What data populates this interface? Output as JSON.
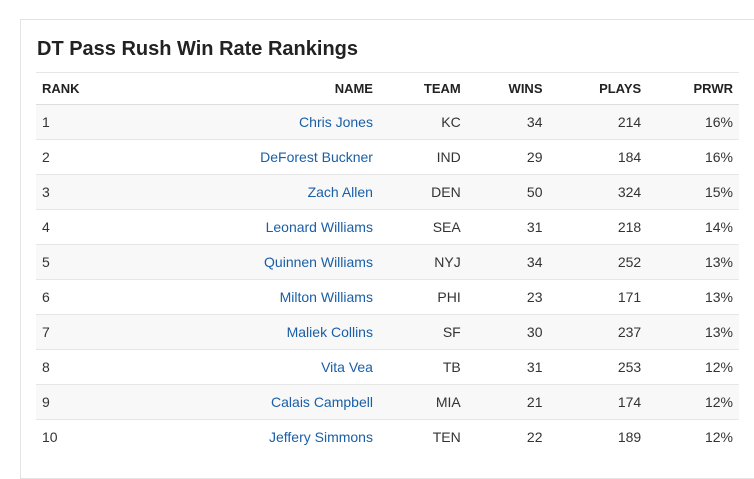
{
  "title": "DT Pass Rush Win Rate Rankings",
  "columns": {
    "rank": "RANK",
    "name": "NAME",
    "team": "TEAM",
    "wins": "WINS",
    "plays": "PLAYS",
    "prwr": "PRWR"
  },
  "rows": [
    {
      "rank": "1",
      "name": "Chris Jones",
      "team": "KC",
      "wins": "34",
      "plays": "214",
      "prwr": "16%"
    },
    {
      "rank": "2",
      "name": "DeForest Buckner",
      "team": "IND",
      "wins": "29",
      "plays": "184",
      "prwr": "16%"
    },
    {
      "rank": "3",
      "name": "Zach Allen",
      "team": "DEN",
      "wins": "50",
      "plays": "324",
      "prwr": "15%"
    },
    {
      "rank": "4",
      "name": "Leonard Williams",
      "team": "SEA",
      "wins": "31",
      "plays": "218",
      "prwr": "14%"
    },
    {
      "rank": "5",
      "name": "Quinnen Williams",
      "team": "NYJ",
      "wins": "34",
      "plays": "252",
      "prwr": "13%"
    },
    {
      "rank": "6",
      "name": "Milton Williams",
      "team": "PHI",
      "wins": "23",
      "plays": "171",
      "prwr": "13%"
    },
    {
      "rank": "7",
      "name": "Maliek Collins",
      "team": "SF",
      "wins": "30",
      "plays": "237",
      "prwr": "13%"
    },
    {
      "rank": "8",
      "name": "Vita Vea",
      "team": "TB",
      "wins": "31",
      "plays": "253",
      "prwr": "12%"
    },
    {
      "rank": "9",
      "name": "Calais Campbell",
      "team": "MIA",
      "wins": "21",
      "plays": "174",
      "prwr": "12%"
    },
    {
      "rank": "10",
      "name": "Jeffery Simmons",
      "team": "TEN",
      "wins": "22",
      "plays": "189",
      "prwr": "12%"
    }
  ],
  "colors": {
    "link": "#1a5fa6",
    "stripe": "#f8f8f8",
    "border": "#e6e6e6"
  }
}
